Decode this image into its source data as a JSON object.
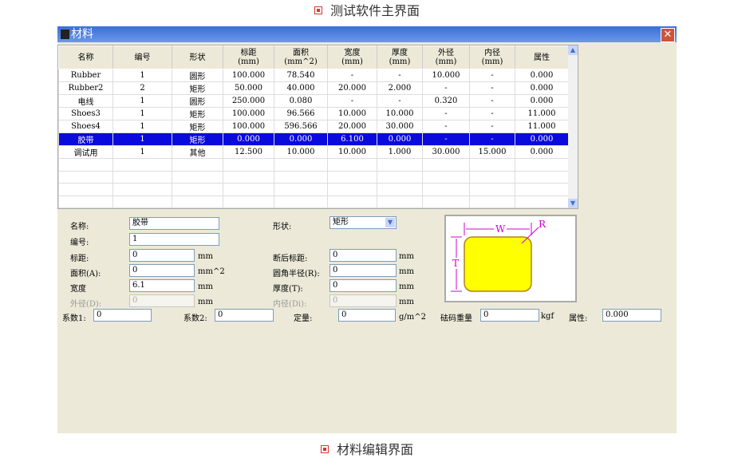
{
  "captions": {
    "top": "测试软件主界面",
    "bottom": "材料编辑界面"
  },
  "window": {
    "title": "材料",
    "close": "✕"
  },
  "table": {
    "headers": [
      [
        "名称",
        ""
      ],
      [
        "编号",
        ""
      ],
      [
        "形状",
        ""
      ],
      [
        "标距",
        "(mm)"
      ],
      [
        "面积",
        "(mm^2)"
      ],
      [
        "宽度",
        "(mm)"
      ],
      [
        "厚度",
        "(mm)"
      ],
      [
        "外径",
        "(mm)"
      ],
      [
        "内径",
        "(mm)"
      ],
      [
        "属性",
        ""
      ]
    ],
    "rows": [
      [
        "Rubber",
        "1",
        "圆形",
        "100.000",
        "78.540",
        "-",
        "-",
        "10.000",
        "-",
        "0.000"
      ],
      [
        "Rubber2",
        "2",
        "矩形",
        "50.000",
        "40.000",
        "20.000",
        "2.000",
        "-",
        "-",
        "0.000"
      ],
      [
        "电线",
        "1",
        "圆形",
        "250.000",
        "0.080",
        "-",
        "-",
        "0.320",
        "-",
        "0.000"
      ],
      [
        "Shoes3",
        "1",
        "矩形",
        "100.000",
        "96.566",
        "10.000",
        "10.000",
        "-",
        "-",
        "11.000"
      ],
      [
        "Shoes4",
        "1",
        "矩形",
        "100.000",
        "596.566",
        "20.000",
        "30.000",
        "-",
        "-",
        "11.000"
      ],
      [
        "胶带",
        "1",
        "矩形",
        "0.000",
        "0.000",
        "6.100",
        "0.000",
        "-",
        "-",
        "0.000"
      ],
      [
        "调试用",
        "1",
        "其他",
        "12.500",
        "10.000",
        "10.000",
        "1.000",
        "30.000",
        "15.000",
        "0.000"
      ]
    ],
    "selected_row": 5
  },
  "form": {
    "name_label": "名称:",
    "name": "胶带",
    "id_label": "编号:",
    "id": "1",
    "gauge_label": "标距:",
    "gauge": "0",
    "gauge_unit": "mm",
    "area_label": "面积(A):",
    "area": "0",
    "area_unit": "mm^2",
    "width_label": "宽度",
    "width": "6.1",
    "width_unit": "mm",
    "od_label": "外径(D):",
    "od": "0",
    "od_unit": "mm",
    "shape_label": "形状:",
    "shape": "矩形",
    "break_gauge_label": "断后标距:",
    "break_gauge": "0",
    "break_gauge_unit": "mm",
    "radius_label": "圆角半径(R):",
    "radius": "0",
    "radius_unit": "mm",
    "thick_label": "厚度(T):",
    "thick": "0",
    "thick_unit": "mm",
    "id2_label": "内径(Di):",
    "id2": "0",
    "id2_unit": "mm",
    "coef1_label": "系数1:",
    "coef1": "0",
    "coef2_label": "系数2:",
    "coef2": "0",
    "quant_label": "定量:",
    "quant": "0",
    "quant_unit": "g/m^2",
    "weight_label": "砝码重量",
    "weight": "0",
    "weight_unit": "kgf",
    "attr_label": "属性:",
    "attr": "0.000"
  },
  "diagram": {
    "w": "W",
    "t": "T",
    "r": "R",
    "fill": "#ffff00",
    "line": "#d000d0"
  }
}
